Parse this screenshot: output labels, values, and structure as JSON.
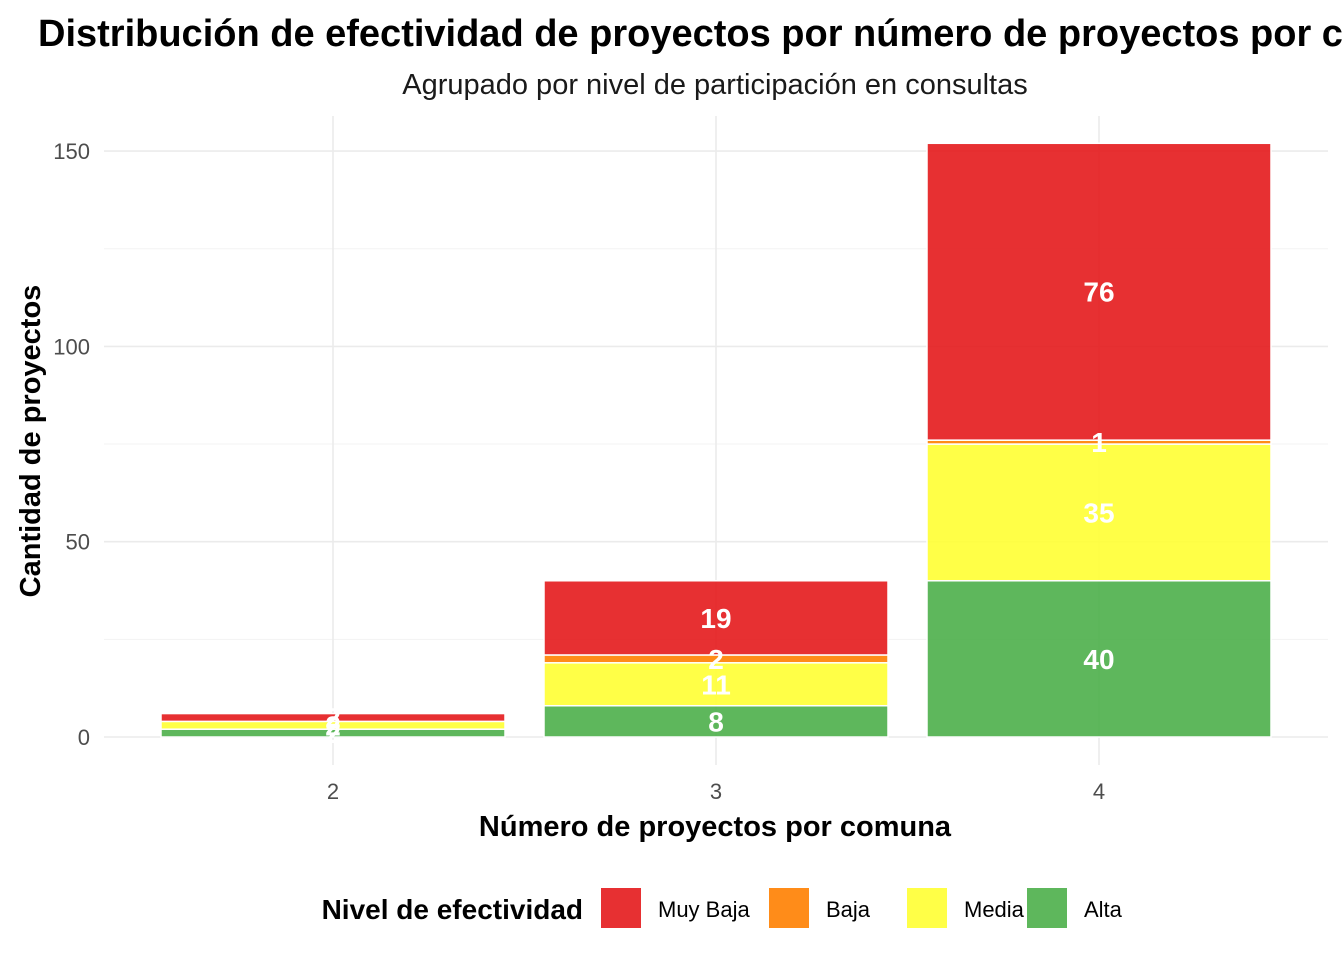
{
  "chart_data": {
    "type": "bar",
    "stacked": true,
    "title": "Distribución de efectividad de proyectos por número de proyectos por comuna",
    "subtitle": "Agrupado por nivel de participación en consultas",
    "xlabel": "Número de proyectos por comuna",
    "ylabel": "Cantidad de proyectos",
    "categories": [
      "2",
      "3",
      "4"
    ],
    "ylim": [
      0,
      152
    ],
    "y_ticks": [
      0,
      50,
      100,
      150
    ],
    "grid": true,
    "legend": {
      "title": "Nivel de efectividad",
      "position": "bottom"
    },
    "series": [
      {
        "name": "Alta",
        "color": "#4daf4a",
        "values": [
          2,
          8,
          40
        ]
      },
      {
        "name": "Media",
        "color": "#ffff33",
        "values": [
          2,
          11,
          35
        ]
      },
      {
        "name": "Baja",
        "color": "#ff7f00",
        "values": [
          0,
          2,
          1
        ]
      },
      {
        "name": "Muy Baja",
        "color": "#e41a1c",
        "values": [
          2,
          19,
          76
        ]
      }
    ],
    "legend_order": [
      "Muy Baja",
      "Baja",
      "Media",
      "Alta"
    ]
  }
}
